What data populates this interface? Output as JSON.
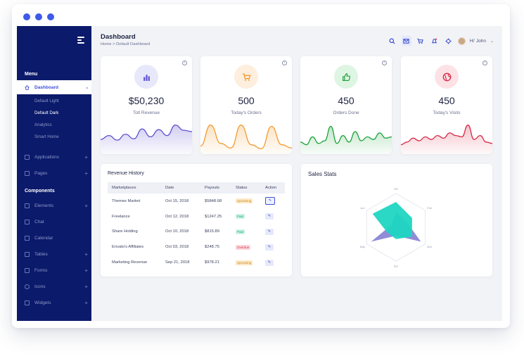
{
  "window": {
    "dots": 3
  },
  "sidebar": {
    "menu_title": "Menu",
    "dashboard": {
      "label": "Dashboard",
      "toggle": "-"
    },
    "dashboard_sub": [
      "Default Light",
      "Default Dark",
      "Analytics",
      "Smart Home"
    ],
    "menu_items": [
      {
        "label": "Applications",
        "toggle": "+"
      },
      {
        "label": "Pages",
        "toggle": "+"
      }
    ],
    "components_title": "Components",
    "component_items": [
      {
        "label": "Elements",
        "toggle": "+"
      },
      {
        "label": "Chat",
        "toggle": ""
      },
      {
        "label": "Calendar",
        "toggle": ""
      },
      {
        "label": "Tables",
        "toggle": "+"
      },
      {
        "label": "Forms",
        "toggle": "+"
      },
      {
        "label": "Icons",
        "toggle": "+"
      },
      {
        "label": "Widgets",
        "toggle": "+"
      }
    ]
  },
  "header": {
    "title": "Dashboard",
    "breadcrumb": "Home > Default Dashboard",
    "user_greeting": "Hi' John",
    "icons": [
      "search-icon",
      "mail-icon",
      "cart-icon",
      "bell-icon",
      "crosshair-icon"
    ]
  },
  "stats": [
    {
      "value": "$50,230",
      "label": "Totl Revenue",
      "icon": "bar-chart-icon",
      "color": "#5b4fd0",
      "bg": "#e8e8fb",
      "series": [
        18,
        24,
        17,
        26,
        19,
        34,
        22,
        33,
        24,
        40,
        32,
        30
      ]
    },
    {
      "value": "500",
      "label": "Today's Orders",
      "icon": "cart-icon",
      "color": "#f29a2e",
      "bg": "#fdeede",
      "series": [
        8,
        40,
        12,
        5,
        40,
        10,
        4,
        38,
        10,
        5
      ]
    },
    {
      "value": "450",
      "label": "Orders Done",
      "icon": "thumbs-up-icon",
      "color": "#20a33c",
      "bg": "#dff5e4",
      "series": [
        14,
        10,
        22,
        12,
        16,
        38,
        12,
        24,
        14,
        30,
        16,
        22,
        18,
        28,
        20,
        22
      ]
    },
    {
      "value": "450",
      "label": "Today's Visits",
      "icon": "globe-icon",
      "color": "#d62b46",
      "bg": "#fde2e5",
      "series": [
        10,
        14,
        20,
        16,
        22,
        18,
        24,
        20,
        28,
        24,
        22,
        40,
        18,
        24,
        14,
        12
      ]
    }
  ],
  "revenue": {
    "title": "Revenue History",
    "columns": [
      "Marketplaces",
      "Date",
      "Payouts",
      "Status",
      "Action"
    ],
    "rows": [
      {
        "market": "Themes Market",
        "date": "Oct 15, 2018",
        "payout": "$5848.68",
        "status": "Upcoming",
        "status_type": "upcoming"
      },
      {
        "market": "Freelance",
        "date": "Oct 12, 2018",
        "payout": "$1247.25",
        "status": "Paid",
        "status_type": "paid"
      },
      {
        "market": "Share Holding",
        "date": "Oct 10, 2018",
        "payout": "$815.89",
        "status": "Paid",
        "status_type": "paid"
      },
      {
        "market": "Envato's Affiliates",
        "date": "Oct 03, 2018",
        "payout": "$248.75",
        "status": "Overdue",
        "status_type": "overdue"
      },
      {
        "market": "Marketing Revenue",
        "date": "Sep 21, 2018",
        "payout": "$978.21",
        "status": "Upcoming",
        "status_type": "upcoming"
      }
    ],
    "action_glyph": "✎"
  },
  "sales": {
    "title": "Sales Stats",
    "axes": [
      "Jan",
      "Feb",
      "Mar",
      "Apr",
      "May",
      "Jun"
    ],
    "series": [
      {
        "color": "#8a86d6",
        "values": [
          0.45,
          0.35,
          0.85,
          0.25,
          0.85,
          0.15
        ]
      },
      {
        "color": "#1fd6c2",
        "values": [
          0.75,
          0.55,
          0.55,
          0.35,
          0.3,
          0.8
        ]
      }
    ]
  }
}
